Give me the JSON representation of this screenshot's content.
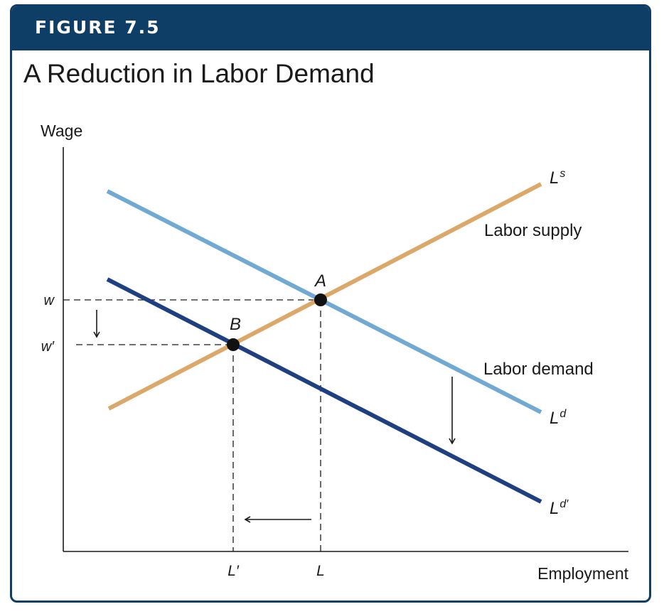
{
  "figure": {
    "label": "FIGURE 7.5",
    "title": "A Reduction in Labor Demand"
  },
  "axes": {
    "y_label": "Wage",
    "x_label": "Employment"
  },
  "curves": {
    "supply_symbol": "L",
    "supply_sup": "s",
    "supply_name": "Labor supply",
    "demand_symbol": "L",
    "demand_sup": "d",
    "demand_name": "Labor demand",
    "demand_new_symbol": "L",
    "demand_new_sup": "d′"
  },
  "points": {
    "a": "A",
    "b": "B"
  },
  "ticks": {
    "w": "w",
    "w_prime": "w′",
    "l": "L",
    "l_prime": "L′"
  },
  "colors": {
    "header": "#0e3d66",
    "supply": "#dca86a",
    "demand": "#70a9d1",
    "demand_new": "#1e3f80"
  }
}
